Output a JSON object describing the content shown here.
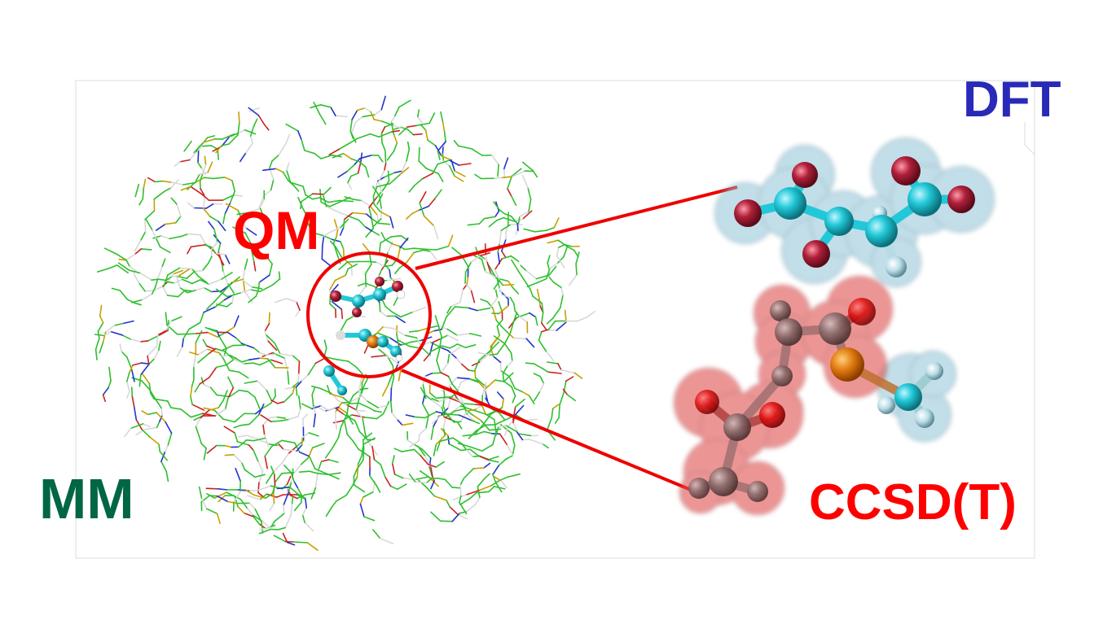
{
  "labels": {
    "qm": "QM",
    "mm": "MM",
    "dft": "DFT",
    "ccsdt": "CCSD(T)"
  },
  "colors": {
    "qm": "#ff0000",
    "mm": "#006644",
    "dft": "#2a2ab8",
    "ccsdt": "#ff0000",
    "mm_carbon": "#2fbf2f",
    "nitrogen": "#2233cc",
    "oxygen": "#cc2222",
    "sulfur": "#c8a000",
    "hydrogen": "#d8d8d8",
    "qm_carbon": "#22c8d8",
    "dft_cloud": "#8fc4d8",
    "ccsd_cloud": "#e05050",
    "connector": "#ee0000"
  },
  "icons": {
    "mm_region": "protein-wireframe-icon",
    "qm_region": "qm-selection-circle-icon",
    "dft_molecule": "dft-molecule-ball-stick-icon",
    "ccsd_molecule": "ccsd-molecule-ball-stick-icon"
  }
}
